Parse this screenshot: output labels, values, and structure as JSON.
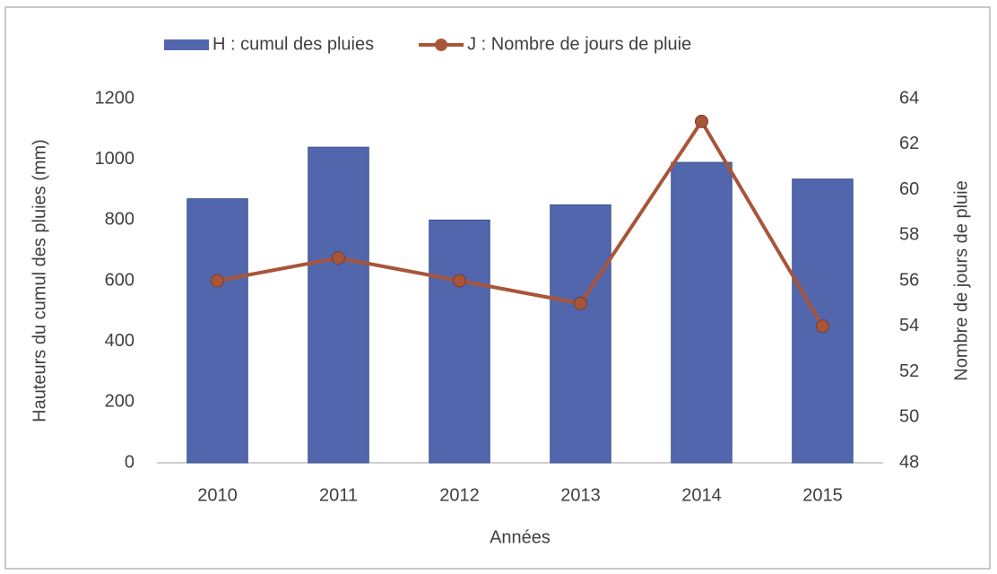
{
  "chart_data": {
    "type": "bar",
    "categories": [
      "2010",
      "2011",
      "2012",
      "2013",
      "2014",
      "2015"
    ],
    "series": [
      {
        "name": "H : cumul des pluies",
        "type": "bar",
        "color": "#5166ad",
        "values": [
          870,
          1040,
          800,
          850,
          990,
          935
        ]
      },
      {
        "name": "J : Nombre de jours de pluie",
        "type": "line",
        "axis": "y2",
        "color": "#a9553a",
        "values": [
          56,
          57,
          56,
          55,
          63,
          54
        ]
      }
    ],
    "ylabel": "Hauteurs du cumul des pluies (mm)",
    "y2label": "Nombre de jours de pluie",
    "xlabel": "Années",
    "ylim": [
      0,
      1200
    ],
    "yticks": [
      0,
      200,
      400,
      600,
      800,
      1000,
      1200
    ],
    "y2lim": [
      48,
      64
    ],
    "y2ticks": [
      48,
      50,
      52,
      54,
      56,
      58,
      60,
      62,
      64
    ],
    "grid": false,
    "legend": "top"
  }
}
